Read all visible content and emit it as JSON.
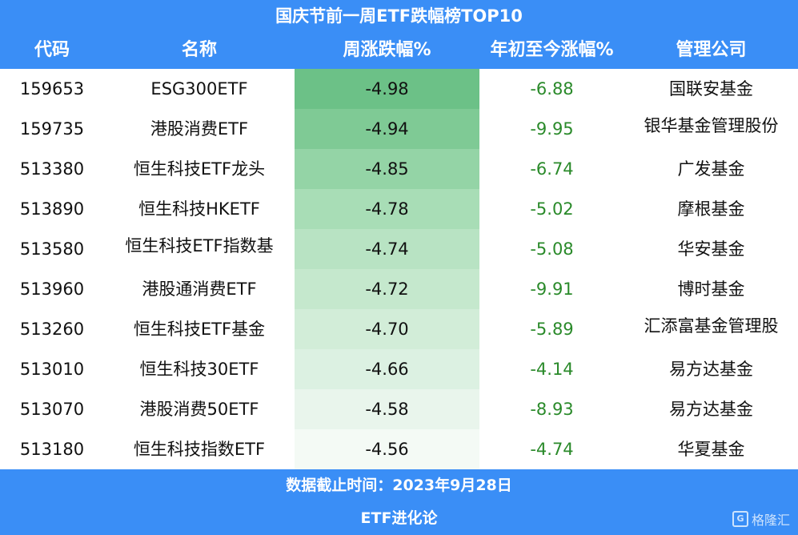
{
  "title": "国庆节前一周ETF跌幅榜TOP10",
  "columns": [
    "代码",
    "名称",
    "周涨跌幅%",
    "年初至今涨幅%",
    "管理公司"
  ],
  "colors": {
    "header_bg": "#3a8ef6",
    "ytd_text": "#2a8a2a",
    "heat_scale": [
      "#6cc187",
      "#7fca95",
      "#94d4a6",
      "#a8ddb6",
      "#b8e3c3",
      "#c5e8cd",
      "#d2edd8",
      "#dcf1e2",
      "#e9f5ec",
      "#f4faf5"
    ]
  },
  "chart_data": {
    "type": "table",
    "title": "国庆节前一周ETF跌幅榜TOP10",
    "columns": [
      "代码",
      "名称",
      "周涨跌幅%",
      "年初至今涨幅%",
      "管理公司"
    ],
    "rows": [
      {
        "code": "159653",
        "name": "ESG300ETF",
        "week": "-4.98",
        "ytd": "-6.88",
        "company": "国联安基金"
      },
      {
        "code": "159735",
        "name": "港股消费ETF",
        "week": "-4.94",
        "ytd": "-9.95",
        "company": "银华基金管理股份"
      },
      {
        "code": "513380",
        "name": "恒生科技ETF龙头",
        "week": "-4.85",
        "ytd": "-6.74",
        "company": "广发基金"
      },
      {
        "code": "513890",
        "name": "恒生科技HKETF",
        "week": "-4.78",
        "ytd": "-5.02",
        "company": "摩根基金"
      },
      {
        "code": "513580",
        "name": "恒生科技ETF指数基",
        "week": "-4.74",
        "ytd": "-5.08",
        "company": "华安基金"
      },
      {
        "code": "513960",
        "name": "港股通消费ETF",
        "week": "-4.72",
        "ytd": "-9.91",
        "company": "博时基金"
      },
      {
        "code": "513260",
        "name": "恒生科技ETF基金",
        "week": "-4.70",
        "ytd": "-5.89",
        "company": "汇添富基金管理股"
      },
      {
        "code": "513010",
        "name": "恒生科技30ETF",
        "week": "-4.66",
        "ytd": "-4.14",
        "company": "易方达基金"
      },
      {
        "code": "513070",
        "name": "港股消费50ETF",
        "week": "-4.58",
        "ytd": "-8.93",
        "company": "易方达基金"
      },
      {
        "code": "513180",
        "name": "恒生科技指数ETF",
        "week": "-4.56",
        "ytd": "-4.74",
        "company": "华夏基金"
      }
    ]
  },
  "footer": {
    "date_line": "数据截止时间：2023年9月28日",
    "source": "ETF进化论",
    "watermark_text": "格隆汇",
    "watermark_icon": "gelonghui-logo-icon"
  }
}
